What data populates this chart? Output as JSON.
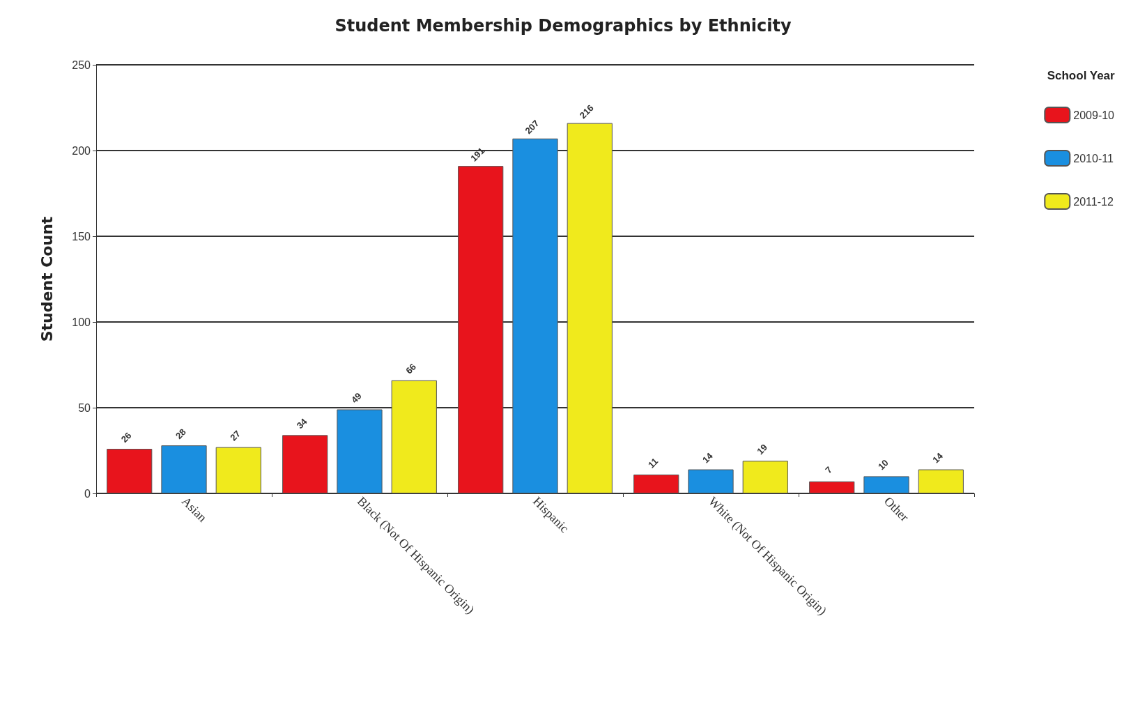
{
  "chart_data": {
    "type": "bar",
    "title": "Student Membership Demographics by Ethnicity",
    "ylabel": "Student Count",
    "legend_title": "School Year",
    "categories": [
      "Asian",
      "Black (Not Of Hispanic Origin)",
      "Hispanic",
      "White (Not Of Hispanic Origin)",
      "Other"
    ],
    "series": [
      {
        "name": "2009-10",
        "color": "#e8141c",
        "values": [
          26,
          34,
          191,
          11,
          7
        ]
      },
      {
        "name": "2010-11",
        "color": "#1a8fe0",
        "values": [
          28,
          49,
          207,
          14,
          10
        ]
      },
      {
        "name": "2011-12",
        "color": "#f0ea1c",
        "values": [
          27,
          66,
          216,
          19,
          14
        ]
      }
    ],
    "ylim": [
      0,
      250
    ],
    "yticks": [
      0,
      50,
      100,
      150,
      200,
      250
    ],
    "grid": "y",
    "legend": "top right",
    "data_labels": true
  }
}
